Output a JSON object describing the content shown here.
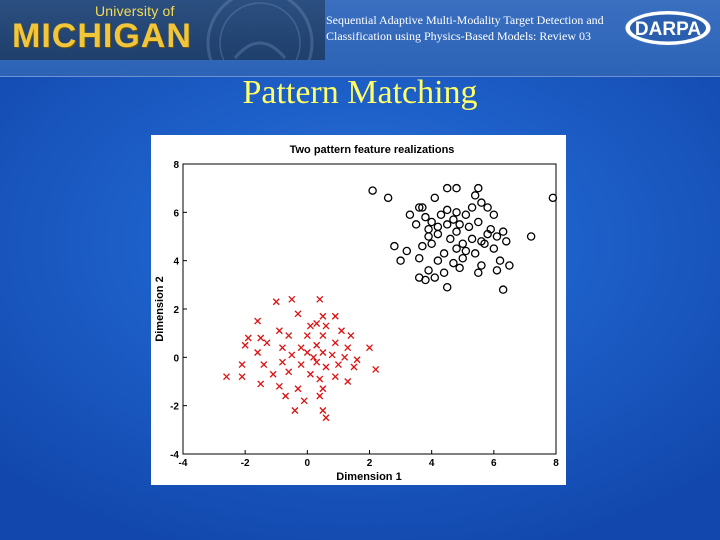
{
  "header": {
    "logo": {
      "line1": "University of",
      "line2": "MICHIGAN"
    },
    "title": "Sequential Adaptive Multi-Modality Target Detection and Classification using Physics-Based Models: Review 03",
    "darpa_logo_text": "DARPA"
  },
  "slide": {
    "title": "Pattern Matching"
  },
  "colors": {
    "title_yellow": "#ffff66",
    "series_black": "#000000",
    "series_red": "#dd1111",
    "logo_gold": "#f2c63a"
  },
  "chart_data": {
    "type": "scatter",
    "title": "Two pattern feature realizations",
    "xlabel": "Dimension 1",
    "ylabel": "Dimension 2",
    "xlim": [
      -4,
      8
    ],
    "ylim": [
      -4,
      8
    ],
    "xticks": [
      -4,
      -2,
      0,
      2,
      4,
      6,
      8
    ],
    "yticks": [
      -4,
      -2,
      0,
      2,
      4,
      6,
      8
    ],
    "grid": false,
    "series": [
      {
        "marker": "circle",
        "color": "#000000",
        "points": [
          [
            2.1,
            6.9
          ],
          [
            2.6,
            6.6
          ],
          [
            3.6,
            6.2
          ],
          [
            3.7,
            6.2
          ],
          [
            4.1,
            6.6
          ],
          [
            4.8,
            7.0
          ],
          [
            4.5,
            7.0
          ],
          [
            5.5,
            7.0
          ],
          [
            5.4,
            6.7
          ],
          [
            5.6,
            6.4
          ],
          [
            7.9,
            6.6
          ],
          [
            3.3,
            5.9
          ],
          [
            3.8,
            5.8
          ],
          [
            4.0,
            5.6
          ],
          [
            4.3,
            5.9
          ],
          [
            4.5,
            6.1
          ],
          [
            4.8,
            6.0
          ],
          [
            5.1,
            5.9
          ],
          [
            5.3,
            6.2
          ],
          [
            5.8,
            6.2
          ],
          [
            6.0,
            5.9
          ],
          [
            3.5,
            5.5
          ],
          [
            3.9,
            5.3
          ],
          [
            4.2,
            5.4
          ],
          [
            4.5,
            5.5
          ],
          [
            4.7,
            5.7
          ],
          [
            4.9,
            5.5
          ],
          [
            5.2,
            5.4
          ],
          [
            5.5,
            5.6
          ],
          [
            5.9,
            5.3
          ],
          [
            6.3,
            5.2
          ],
          [
            3.9,
            5.0
          ],
          [
            4.2,
            5.1
          ],
          [
            4.6,
            4.9
          ],
          [
            4.8,
            5.2
          ],
          [
            5.0,
            4.7
          ],
          [
            5.3,
            4.9
          ],
          [
            5.6,
            4.8
          ],
          [
            5.8,
            5.1
          ],
          [
            6.1,
            5.0
          ],
          [
            7.2,
            5.0
          ],
          [
            2.8,
            4.6
          ],
          [
            3.2,
            4.4
          ],
          [
            3.7,
            4.6
          ],
          [
            4.0,
            4.7
          ],
          [
            4.4,
            4.3
          ],
          [
            4.8,
            4.5
          ],
          [
            5.1,
            4.4
          ],
          [
            5.4,
            4.3
          ],
          [
            5.7,
            4.7
          ],
          [
            6.0,
            4.5
          ],
          [
            6.4,
            4.8
          ],
          [
            3.0,
            4.0
          ],
          [
            3.6,
            4.1
          ],
          [
            4.2,
            4.0
          ],
          [
            4.7,
            3.9
          ],
          [
            5.0,
            4.1
          ],
          [
            5.6,
            3.8
          ],
          [
            6.2,
            4.0
          ],
          [
            6.5,
            3.8
          ],
          [
            3.9,
            3.6
          ],
          [
            4.4,
            3.5
          ],
          [
            4.9,
            3.7
          ],
          [
            5.5,
            3.5
          ],
          [
            6.1,
            3.6
          ],
          [
            3.6,
            3.3
          ],
          [
            4.1,
            3.3
          ],
          [
            3.8,
            3.2
          ],
          [
            4.5,
            2.9
          ],
          [
            6.3,
            2.8
          ]
        ]
      },
      {
        "marker": "x",
        "color": "#dd1111",
        "points": [
          [
            -1.0,
            2.3
          ],
          [
            -0.5,
            2.4
          ],
          [
            0.4,
            2.4
          ],
          [
            -0.3,
            1.8
          ],
          [
            0.5,
            1.7
          ],
          [
            0.9,
            1.7
          ],
          [
            -1.6,
            1.5
          ],
          [
            0.1,
            1.3
          ],
          [
            0.3,
            1.4
          ],
          [
            0.6,
            1.3
          ],
          [
            1.1,
            1.1
          ],
          [
            -0.9,
            1.1
          ],
          [
            -1.9,
            0.8
          ],
          [
            -1.5,
            0.8
          ],
          [
            -0.6,
            0.9
          ],
          [
            0.0,
            0.9
          ],
          [
            0.5,
            0.9
          ],
          [
            1.4,
            0.9
          ],
          [
            -2.0,
            0.5
          ],
          [
            -1.3,
            0.6
          ],
          [
            -0.8,
            0.4
          ],
          [
            -0.2,
            0.4
          ],
          [
            0.3,
            0.5
          ],
          [
            0.9,
            0.6
          ],
          [
            1.3,
            0.4
          ],
          [
            2.0,
            0.4
          ],
          [
            -1.6,
            0.2
          ],
          [
            -0.5,
            0.1
          ],
          [
            0.0,
            0.2
          ],
          [
            0.2,
            0.0
          ],
          [
            0.5,
            0.2
          ],
          [
            0.8,
            0.1
          ],
          [
            1.2,
            0.0
          ],
          [
            1.6,
            -0.1
          ],
          [
            -2.1,
            -0.3
          ],
          [
            -1.4,
            -0.3
          ],
          [
            -0.8,
            -0.2
          ],
          [
            -0.2,
            -0.3
          ],
          [
            0.3,
            -0.2
          ],
          [
            0.6,
            -0.4
          ],
          [
            1.0,
            -0.3
          ],
          [
            1.5,
            -0.4
          ],
          [
            2.2,
            -0.5
          ],
          [
            -2.6,
            -0.8
          ],
          [
            -2.1,
            -0.8
          ],
          [
            -1.1,
            -0.7
          ],
          [
            -0.6,
            -0.6
          ],
          [
            0.1,
            -0.7
          ],
          [
            0.4,
            -0.9
          ],
          [
            0.9,
            -0.8
          ],
          [
            1.3,
            -1.0
          ],
          [
            -1.5,
            -1.1
          ],
          [
            -0.9,
            -1.2
          ],
          [
            -0.3,
            -1.3
          ],
          [
            0.5,
            -1.3
          ],
          [
            -0.7,
            -1.6
          ],
          [
            0.4,
            -1.6
          ],
          [
            -0.1,
            -1.8
          ],
          [
            -0.4,
            -2.2
          ],
          [
            0.5,
            -2.2
          ],
          [
            0.6,
            -2.5
          ]
        ]
      }
    ]
  }
}
